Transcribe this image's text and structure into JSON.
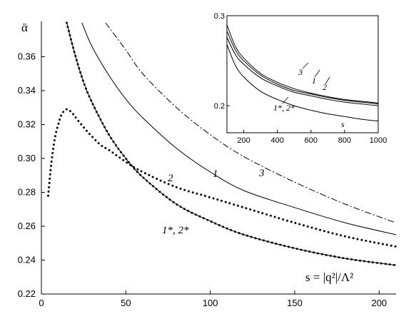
{
  "chart_data": [
    {
      "type": "line",
      "ylabel": "ᾱ",
      "xlabel": "s = |q²|/Λ²",
      "xlim": [
        0,
        210
      ],
      "ylim": [
        0.22,
        0.38
      ],
      "x_ticks": [
        0,
        50,
        100,
        150,
        200
      ],
      "y_ticks": [
        0.22,
        0.24,
        0.26,
        0.28,
        0.3,
        0.32,
        0.34,
        0.36
      ],
      "series": [
        {
          "name": "1",
          "style": "solid",
          "x": [
            24,
            30,
            40,
            50,
            60,
            80,
            100,
            120,
            150,
            180,
            210
          ],
          "y": [
            0.38,
            0.366,
            0.349,
            0.335,
            0.324,
            0.306,
            0.292,
            0.281,
            0.271,
            0.262,
            0.255
          ]
        },
        {
          "name": "3",
          "style": "dashdot",
          "x": [
            38,
            50,
            60,
            80,
            100,
            120,
            150,
            180,
            210
          ],
          "y": [
            0.38,
            0.364,
            0.35,
            0.33,
            0.314,
            0.301,
            0.286,
            0.273,
            0.262
          ]
        },
        {
          "name": "2",
          "style": "dotted",
          "x": [
            4,
            6,
            8,
            10,
            12,
            15,
            18,
            22,
            28,
            35,
            40,
            50,
            60,
            80,
            100,
            120,
            150,
            180,
            210
          ],
          "y": [
            0.278,
            0.298,
            0.312,
            0.32,
            0.326,
            0.329,
            0.327,
            0.322,
            0.315,
            0.308,
            0.305,
            0.298,
            0.292,
            0.283,
            0.277,
            0.271,
            0.262,
            0.254,
            0.248
          ]
        },
        {
          "name": "1*, 2*",
          "style": "solid-dotted",
          "x": [
            15,
            20,
            25,
            30,
            40,
            50,
            60,
            80,
            100,
            120,
            150,
            180,
            210
          ],
          "y": [
            0.38,
            0.361,
            0.345,
            0.333,
            0.314,
            0.3,
            0.289,
            0.273,
            0.263,
            0.255,
            0.247,
            0.241,
            0.237
          ]
        }
      ],
      "labels": {
        "c1": "1",
        "c3": "3",
        "c2": "2",
        "c12": "1*, 2*"
      }
    },
    {
      "type": "line",
      "ylabel": "",
      "xlabel": "",
      "xlim": [
        100,
        1000
      ],
      "ylim": [
        0.17,
        0.3
      ],
      "x_ticks": [
        200,
        400,
        600,
        800,
        1000
      ],
      "y_ticks": [
        0.2,
        0.3
      ],
      "y_tick_labels": [
        "0.2",
        "0.3"
      ],
      "series": [
        {
          "name": "3",
          "x": [
            100,
            150,
            200,
            300,
            400,
            500,
            600,
            700,
            800,
            900,
            1000
          ],
          "y": [
            0.29,
            0.266,
            0.253,
            0.236,
            0.226,
            0.219,
            0.214,
            0.21,
            0.207,
            0.205,
            0.203
          ]
        },
        {
          "name": "1",
          "x": [
            100,
            150,
            200,
            300,
            400,
            500,
            600,
            700,
            800,
            900,
            1000
          ],
          "y": [
            0.283,
            0.262,
            0.25,
            0.234,
            0.224,
            0.217,
            0.213,
            0.209,
            0.206,
            0.204,
            0.202
          ]
        },
        {
          "name": "2",
          "x": [
            100,
            150,
            200,
            300,
            400,
            500,
            600,
            700,
            800,
            900,
            1000
          ],
          "y": [
            0.276,
            0.257,
            0.246,
            0.231,
            0.222,
            0.215,
            0.211,
            0.207,
            0.204,
            0.202,
            0.2
          ]
        },
        {
          "name": "1*, 2*",
          "x": [
            100,
            150,
            200,
            300,
            400,
            500,
            600,
            700,
            800,
            900,
            1000
          ],
          "y": [
            0.268,
            0.245,
            0.232,
            0.216,
            0.207,
            0.2,
            0.195,
            0.191,
            0.188,
            0.185,
            0.183
          ]
        }
      ],
      "labels": {
        "c3": "3",
        "c1": "1",
        "c2": "2",
        "c12": "1*, 2*",
        "s": "s"
      }
    }
  ]
}
